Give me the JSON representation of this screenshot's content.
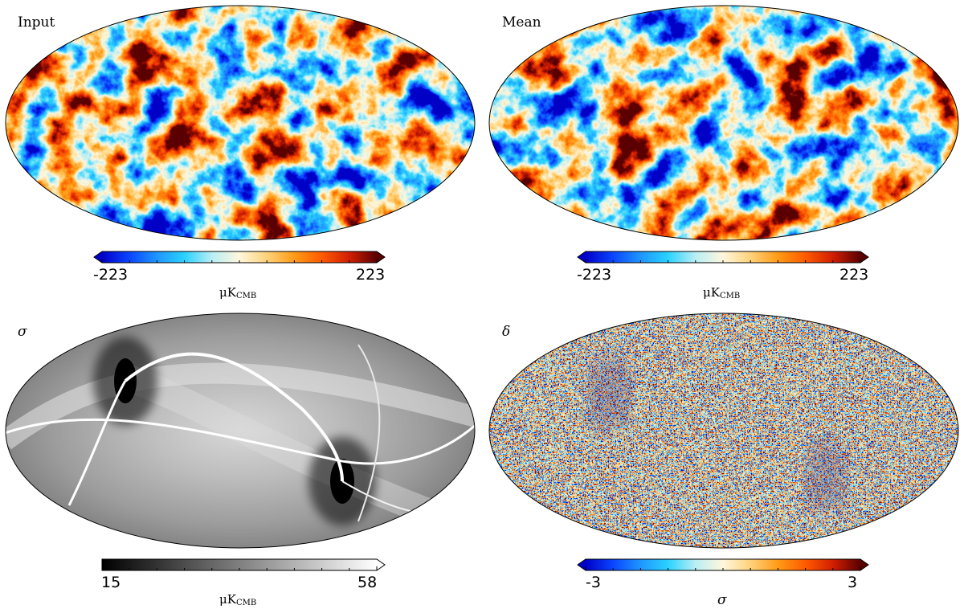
{
  "panels": [
    {
      "id": "input",
      "title": "Input",
      "map_style": "cmb",
      "colorbar": {
        "min_label": "-223",
        "max_label": "223",
        "unit_main": "μK",
        "unit_sub": "CMB",
        "colormap": [
          "#0000c8",
          "#0a46ff",
          "#1e96ff",
          "#2ad2ff",
          "#b9eef4",
          "#fff7dc",
          "#ffd27a",
          "#ff9b16",
          "#ff5a00",
          "#d21e00",
          "#5a0000"
        ],
        "extend": "both"
      }
    },
    {
      "id": "mean",
      "title": "Mean",
      "map_style": "cmb",
      "colorbar": {
        "min_label": "-223",
        "max_label": "223",
        "unit_main": "μK",
        "unit_sub": "CMB",
        "colormap": [
          "#0000c8",
          "#0a46ff",
          "#1e96ff",
          "#2ad2ff",
          "#b9eef4",
          "#fff7dc",
          "#ffd27a",
          "#ff9b16",
          "#ff5a00",
          "#d21e00",
          "#5a0000"
        ],
        "extend": "both"
      }
    },
    {
      "id": "sigma",
      "title": "σ",
      "map_style": "gray",
      "colorbar": {
        "min_label": "15",
        "max_label": "58",
        "unit_main": "μK",
        "unit_sub": "CMB",
        "colormap": [
          "#000000",
          "#ffffff"
        ],
        "extend": "max"
      }
    },
    {
      "id": "delta",
      "title": "δ",
      "map_style": "noise",
      "colorbar": {
        "min_label": "-3",
        "max_label": "3",
        "unit_main": "σ",
        "unit_sub": "",
        "colormap": [
          "#0000c8",
          "#0a46ff",
          "#1e96ff",
          "#2ad2ff",
          "#b9eef4",
          "#fff7dc",
          "#ffd27a",
          "#ff9b16",
          "#ff5a00",
          "#d21e00",
          "#5a0000"
        ],
        "extend": "both"
      }
    }
  ]
}
